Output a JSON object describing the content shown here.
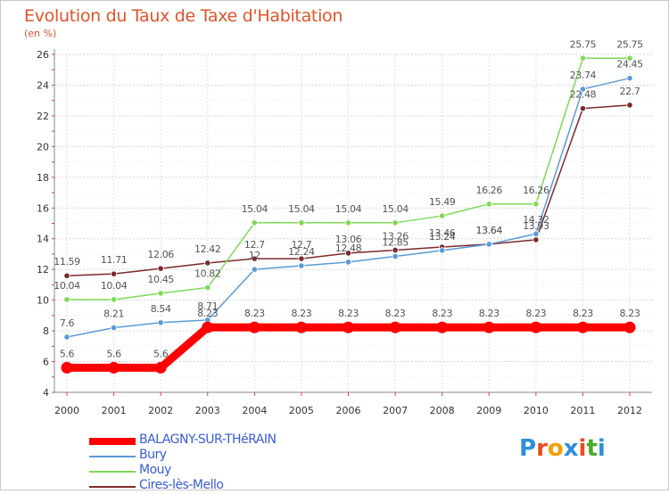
{
  "title": "Evolution du Taux de Taxe d'Habitation",
  "subtitle": "(en %)",
  "logo": {
    "letters": [
      "P",
      "r",
      "o",
      "x",
      "i",
      "t",
      "i"
    ],
    "colors": [
      "#2e8fd8",
      "#e84c1f",
      "#f2a000",
      "#2e8fd8",
      "#e84c1f",
      "#4aaa2a",
      "#2e8fd8"
    ]
  },
  "chart_data": {
    "type": "line",
    "x": [
      "2000",
      "2001",
      "2002",
      "2003",
      "2004",
      "2005",
      "2006",
      "2007",
      "2008",
      "2009",
      "2010",
      "2011",
      "2012"
    ],
    "ylim": [
      4,
      26
    ],
    "yticks": [
      "4",
      "6",
      "8",
      "10",
      "12",
      "14",
      "16",
      "18",
      "20",
      "22",
      "24",
      "26"
    ],
    "grid": true,
    "legend_position": "bottom-left",
    "series": [
      {
        "name": "BALAGNY-SUR-THéRAIN",
        "color": "#ff0000",
        "values": [
          5.6,
          5.6,
          5.6,
          8.23,
          8.23,
          8.23,
          8.23,
          8.23,
          8.23,
          8.23,
          8.23,
          8.23,
          8.23
        ],
        "labels": [
          "5.6",
          "5.6",
          "5.6",
          "8.23",
          "8.23",
          "8.23",
          "8.23",
          "8.23",
          "8.23",
          "8.23",
          "8.23",
          "8.23",
          "8.23"
        ]
      },
      {
        "name": "Bury",
        "color": "#5b9bd5",
        "values": [
          7.6,
          8.21,
          8.54,
          8.71,
          12.0,
          12.24,
          12.48,
          12.85,
          13.24,
          13.64,
          14.32,
          23.74,
          24.45
        ],
        "labels": [
          "7.6",
          "8.21",
          "8.54",
          "8.71",
          "12",
          "12.24",
          "12.48",
          "12.85",
          "13.24",
          "13.64",
          "14.32",
          "23.74",
          "24.45"
        ]
      },
      {
        "name": "Mouy",
        "color": "#7ed957",
        "values": [
          10.04,
          10.04,
          10.45,
          10.82,
          15.04,
          15.04,
          15.04,
          15.04,
          15.49,
          16.26,
          16.26,
          25.75,
          25.75
        ],
        "labels": [
          "10.04",
          "10.04",
          "10.45",
          "10.82",
          "15.04",
          "15.04",
          "15.04",
          "15.04",
          "15.49",
          "16.26",
          "16.26",
          "25.75",
          "25.75"
        ]
      },
      {
        "name": "Cires-lès-Mello",
        "color": "#7b2a2a",
        "values": [
          11.59,
          11.71,
          12.06,
          12.42,
          12.7,
          12.7,
          13.06,
          13.26,
          13.46,
          13.64,
          13.93,
          22.48,
          22.7
        ],
        "labels": [
          "11.59",
          "11.71",
          "12.06",
          "12.42",
          "12.7",
          "12.7",
          "13.06",
          "13.26",
          "13.46",
          "13.64",
          "13.93",
          "22.48",
          "22.7"
        ]
      }
    ]
  }
}
